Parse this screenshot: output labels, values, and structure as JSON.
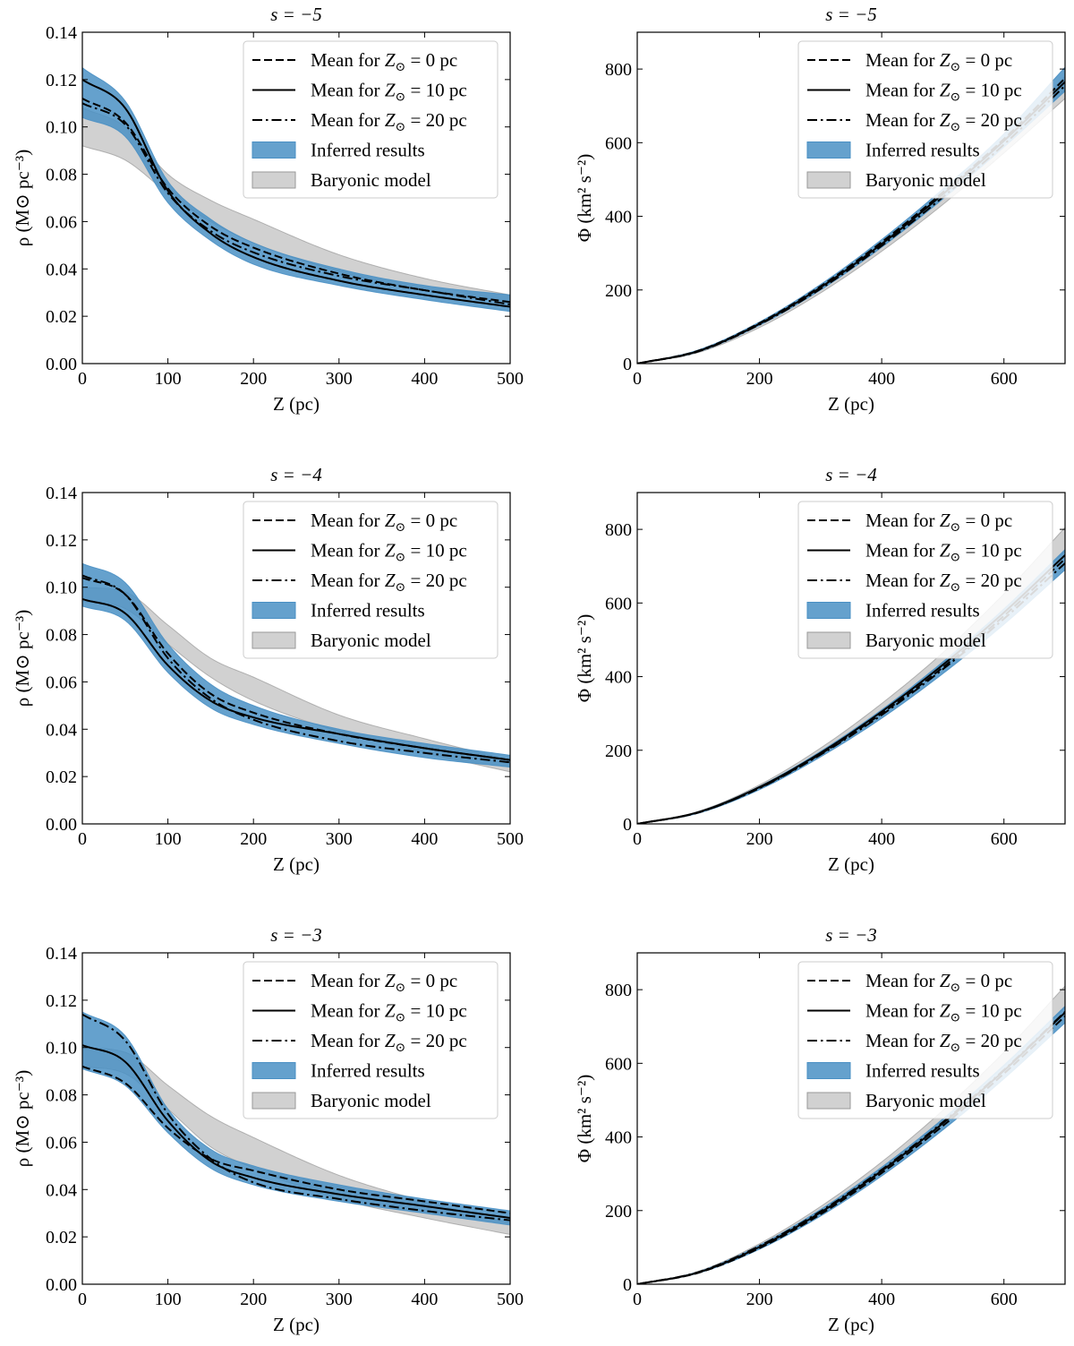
{
  "colors": {
    "inferred": "#4a90c4",
    "inferred_alpha": 0.85,
    "inferred_overlap": "#3a6f99",
    "baryonic": "#b3b3b3",
    "baryonic_alpha": 0.6,
    "line": "#000000"
  },
  "legend": {
    "entries": [
      {
        "prefix": "Mean for ",
        "var": "Z",
        "sub": "⊙",
        "suffix": " = 0 pc",
        "style": "dashed"
      },
      {
        "prefix": "Mean for ",
        "var": "Z",
        "sub": "⊙",
        "suffix": " = 10 pc",
        "style": "solid"
      },
      {
        "prefix": "Mean for ",
        "var": "Z",
        "sub": "⊙",
        "suffix": " = 20 pc",
        "style": "dashdot"
      },
      {
        "label": "Inferred results",
        "style": "patch-blue"
      },
      {
        "label": "Baryonic model",
        "style": "patch-gray"
      }
    ],
    "placement": "upper-right"
  },
  "chart_data": [
    {
      "type": "line",
      "title": "s = −5",
      "panel": "rho",
      "xlabel": "Z (pc)",
      "ylabel": "ρ (M⊙ pc⁻³)",
      "xlim": [
        0,
        500
      ],
      "ylim": [
        0,
        0.14
      ],
      "xticks": [
        "0",
        "100",
        "200",
        "300",
        "400",
        "500"
      ],
      "yticks": [
        "0.00",
        "0.02",
        "0.04",
        "0.06",
        "0.08",
        "0.10",
        "0.12",
        "0.14"
      ],
      "x": [
        0,
        50,
        100,
        150,
        200,
        300,
        400,
        500
      ],
      "series": [
        {
          "name": "Mean for Z⊙ = 0 pc",
          "style": "dashed",
          "values": [
            0.112,
            0.102,
            0.074,
            0.058,
            0.049,
            0.038,
            0.031,
            0.026
          ]
        },
        {
          "name": "Mean for Z⊙ = 10 pc",
          "style": "solid",
          "values": [
            0.12,
            0.108,
            0.073,
            0.055,
            0.045,
            0.035,
            0.029,
            0.024
          ]
        },
        {
          "name": "Mean for Z⊙ = 20 pc",
          "style": "dashdot",
          "values": [
            0.11,
            0.101,
            0.072,
            0.056,
            0.047,
            0.037,
            0.031,
            0.025
          ]
        }
      ],
      "bands": [
        {
          "name": "Inferred results",
          "lower": [
            0.104,
            0.096,
            0.068,
            0.052,
            0.042,
            0.033,
            0.027,
            0.022
          ],
          "upper": [
            0.125,
            0.111,
            0.077,
            0.061,
            0.051,
            0.04,
            0.033,
            0.029
          ]
        },
        {
          "name": "Baryonic model",
          "lower": [
            0.092,
            0.086,
            0.072,
            0.06,
            0.051,
            0.039,
            0.031,
            0.026
          ],
          "upper": [
            0.108,
            0.1,
            0.08,
            0.069,
            0.061,
            0.046,
            0.036,
            0.029
          ]
        }
      ]
    },
    {
      "type": "line",
      "title": "s = −5",
      "panel": "phi",
      "xlabel": "Z (pc)",
      "ylabel": "Φ (km² s⁻²)",
      "xlim": [
        0,
        700
      ],
      "ylim": [
        0,
        900
      ],
      "xticks": [
        "0",
        "200",
        "400",
        "600"
      ],
      "yticks": [
        "0",
        "200",
        "400",
        "600",
        "800"
      ],
      "x": [
        0,
        100,
        200,
        300,
        400,
        500,
        600,
        700
      ],
      "series": [
        {
          "name": "Mean for Z⊙ = 0 pc",
          "style": "dashed",
          "values": [
            0,
            35,
            110,
            210,
            330,
            465,
            610,
            775
          ]
        },
        {
          "name": "Mean for Z⊙ = 10 pc",
          "style": "solid",
          "values": [
            0,
            34,
            108,
            207,
            325,
            460,
            605,
            765
          ]
        },
        {
          "name": "Mean for Z⊙ = 20 pc",
          "style": "dashdot",
          "values": [
            0,
            33,
            106,
            203,
            320,
            452,
            595,
            755
          ]
        }
      ],
      "bands": [
        {
          "name": "Inferred results",
          "lower": [
            0,
            32,
            104,
            200,
            316,
            447,
            588,
            740
          ],
          "upper": [
            0,
            37,
            113,
            215,
            337,
            474,
            624,
            805
          ]
        },
        {
          "name": "Baryonic model",
          "lower": [
            0,
            30,
            98,
            192,
            305,
            432,
            572,
            720
          ],
          "upper": [
            0,
            34,
            108,
            206,
            324,
            460,
            610,
            780
          ]
        }
      ]
    },
    {
      "type": "line",
      "title": "s = −4",
      "panel": "rho",
      "xlabel": "Z (pc)",
      "ylabel": "ρ (M⊙ pc⁻³)",
      "xlim": [
        0,
        500
      ],
      "ylim": [
        0,
        0.14
      ],
      "xticks": [
        "0",
        "100",
        "200",
        "300",
        "400",
        "500"
      ],
      "yticks": [
        "0.00",
        "0.02",
        "0.04",
        "0.06",
        "0.08",
        "0.10",
        "0.12",
        "0.14"
      ],
      "x": [
        0,
        50,
        100,
        150,
        200,
        300,
        400,
        500
      ],
      "series": [
        {
          "name": "Mean for Z⊙ = 0 pc",
          "style": "dashed",
          "values": [
            0.104,
            0.097,
            0.072,
            0.055,
            0.047,
            0.038,
            0.032,
            0.027
          ]
        },
        {
          "name": "Mean for Z⊙ = 10 pc",
          "style": "solid",
          "values": [
            0.095,
            0.089,
            0.067,
            0.052,
            0.045,
            0.038,
            0.032,
            0.027
          ]
        },
        {
          "name": "Mean for Z⊙ = 20 pc",
          "style": "dashdot",
          "values": [
            0.105,
            0.097,
            0.07,
            0.053,
            0.044,
            0.035,
            0.03,
            0.026
          ]
        }
      ],
      "bands": [
        {
          "name": "Inferred results",
          "lower": [
            0.092,
            0.086,
            0.064,
            0.049,
            0.042,
            0.034,
            0.028,
            0.024
          ],
          "upper": [
            0.11,
            0.102,
            0.076,
            0.059,
            0.05,
            0.04,
            0.034,
            0.029
          ]
        },
        {
          "name": "Baryonic model",
          "lower": [
            0.094,
            0.091,
            0.076,
            0.062,
            0.052,
            0.039,
            0.03,
            0.022
          ],
          "upper": [
            0.1,
            0.098,
            0.084,
            0.07,
            0.062,
            0.046,
            0.036,
            0.027
          ]
        }
      ]
    },
    {
      "type": "line",
      "title": "s = −4",
      "panel": "phi",
      "xlabel": "Z (pc)",
      "ylabel": "Φ (km² s⁻²)",
      "xlim": [
        0,
        700
      ],
      "ylim": [
        0,
        900
      ],
      "xticks": [
        "0",
        "200",
        "400",
        "600"
      ],
      "yticks": [
        "0",
        "200",
        "400",
        "600",
        "800"
      ],
      "x": [
        0,
        100,
        200,
        300,
        400,
        500,
        600,
        700
      ],
      "series": [
        {
          "name": "Mean for Z⊙ = 0 pc",
          "style": "dashed",
          "values": [
            0,
            31,
            98,
            190,
            300,
            425,
            565,
            720
          ]
        },
        {
          "name": "Mean for Z⊙ = 10 pc",
          "style": "solid",
          "values": [
            0,
            32,
            100,
            193,
            305,
            432,
            574,
            730
          ]
        },
        {
          "name": "Mean for Z⊙ = 20 pc",
          "style": "dashdot",
          "values": [
            0,
            31,
            97,
            188,
            296,
            420,
            557,
            708
          ]
        }
      ],
      "bands": [
        {
          "name": "Inferred results",
          "lower": [
            0,
            29,
            93,
            182,
            287,
            408,
            542,
            690
          ],
          "upper": [
            0,
            33,
            102,
            197,
            310,
            440,
            584,
            745
          ]
        },
        {
          "name": "Baryonic model",
          "lower": [
            0,
            31,
            98,
            192,
            306,
            436,
            582,
            740
          ],
          "upper": [
            0,
            34,
            106,
            206,
            327,
            465,
            625,
            805
          ]
        }
      ]
    },
    {
      "type": "line",
      "title": "s = −3",
      "panel": "rho",
      "xlabel": "Z (pc)",
      "ylabel": "ρ (M⊙ pc⁻³)",
      "xlim": [
        0,
        500
      ],
      "ylim": [
        0,
        0.14
      ],
      "xticks": [
        "0",
        "100",
        "200",
        "300",
        "400",
        "500"
      ],
      "yticks": [
        "0.00",
        "0.02",
        "0.04",
        "0.06",
        "0.08",
        "0.10",
        "0.12",
        "0.14"
      ],
      "x": [
        0,
        50,
        100,
        150,
        200,
        300,
        400,
        500
      ],
      "series": [
        {
          "name": "Mean for Z⊙ = 0 pc",
          "style": "dashed",
          "values": [
            0.092,
            0.085,
            0.066,
            0.053,
            0.048,
            0.04,
            0.035,
            0.03
          ]
        },
        {
          "name": "Mean for Z⊙ = 10 pc",
          "style": "solid",
          "values": [
            0.101,
            0.094,
            0.069,
            0.052,
            0.045,
            0.038,
            0.033,
            0.028
          ]
        },
        {
          "name": "Mean for Z⊙ = 20 pc",
          "style": "dashdot",
          "values": [
            0.114,
            0.103,
            0.072,
            0.053,
            0.043,
            0.036,
            0.031,
            0.027
          ]
        }
      ],
      "bands": [
        {
          "name": "Inferred results",
          "lower": [
            0.091,
            0.084,
            0.064,
            0.049,
            0.042,
            0.035,
            0.03,
            0.025
          ],
          "upper": [
            0.115,
            0.105,
            0.074,
            0.057,
            0.05,
            0.042,
            0.036,
            0.031
          ]
        },
        {
          "name": "Baryonic model",
          "lower": [
            0.092,
            0.089,
            0.074,
            0.058,
            0.049,
            0.036,
            0.028,
            0.021
          ],
          "upper": [
            0.1,
            0.098,
            0.084,
            0.071,
            0.062,
            0.046,
            0.035,
            0.026
          ]
        }
      ]
    },
    {
      "type": "line",
      "title": "s = −3",
      "panel": "phi",
      "xlabel": "Z (pc)",
      "ylabel": "Φ (km² s⁻²)",
      "xlim": [
        0,
        700
      ],
      "ylim": [
        0,
        900
      ],
      "xticks": [
        "0",
        "200",
        "400",
        "600"
      ],
      "yticks": [
        "0",
        "200",
        "400",
        "600",
        "800"
      ],
      "x": [
        0,
        100,
        200,
        300,
        400,
        500,
        600,
        700
      ],
      "series": [
        {
          "name": "Mean for Z⊙ = 0 pc",
          "style": "dashed",
          "values": [
            0,
            31,
            98,
            190,
            302,
            430,
            572,
            728
          ]
        },
        {
          "name": "Mean for Z⊙ = 10 pc",
          "style": "solid",
          "values": [
            0,
            32,
            101,
            195,
            308,
            437,
            580,
            738
          ]
        },
        {
          "name": "Mean for Z⊙ = 20 pc",
          "style": "dashdot",
          "values": [
            0,
            33,
            104,
            198,
            311,
            440,
            582,
            740
          ]
        }
      ],
      "bands": [
        {
          "name": "Inferred results",
          "lower": [
            0,
            30,
            95,
            185,
            294,
            419,
            558,
            710
          ],
          "upper": [
            0,
            34,
            106,
            203,
            318,
            449,
            595,
            755
          ]
        },
        {
          "name": "Baryonic model",
          "lower": [
            0,
            32,
            101,
            197,
            313,
            445,
            593,
            752
          ],
          "upper": [
            0,
            35,
            110,
            211,
            332,
            472,
            630,
            810
          ]
        }
      ]
    }
  ]
}
